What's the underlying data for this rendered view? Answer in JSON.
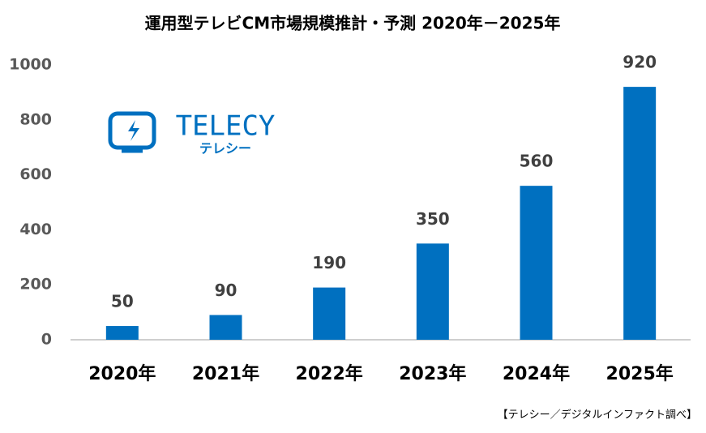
{
  "chart_data": {
    "type": "bar",
    "title": "運用型テレビCM市場規模推計・予測 2020年－2025年",
    "categories": [
      "2020年",
      "2021年",
      "2022年",
      "2023年",
      "2024年",
      "2025年"
    ],
    "values": [
      50,
      90,
      190,
      350,
      560,
      920
    ],
    "color": "#0070c0",
    "ylim": [
      0,
      1000
    ],
    "yticks": [
      0,
      200,
      400,
      600,
      800,
      1000
    ],
    "grid": false,
    "source": "【テレシー／デジタルインファクト調べ】",
    "logo": {
      "name": "TELECY",
      "kana": "テレシー"
    }
  }
}
